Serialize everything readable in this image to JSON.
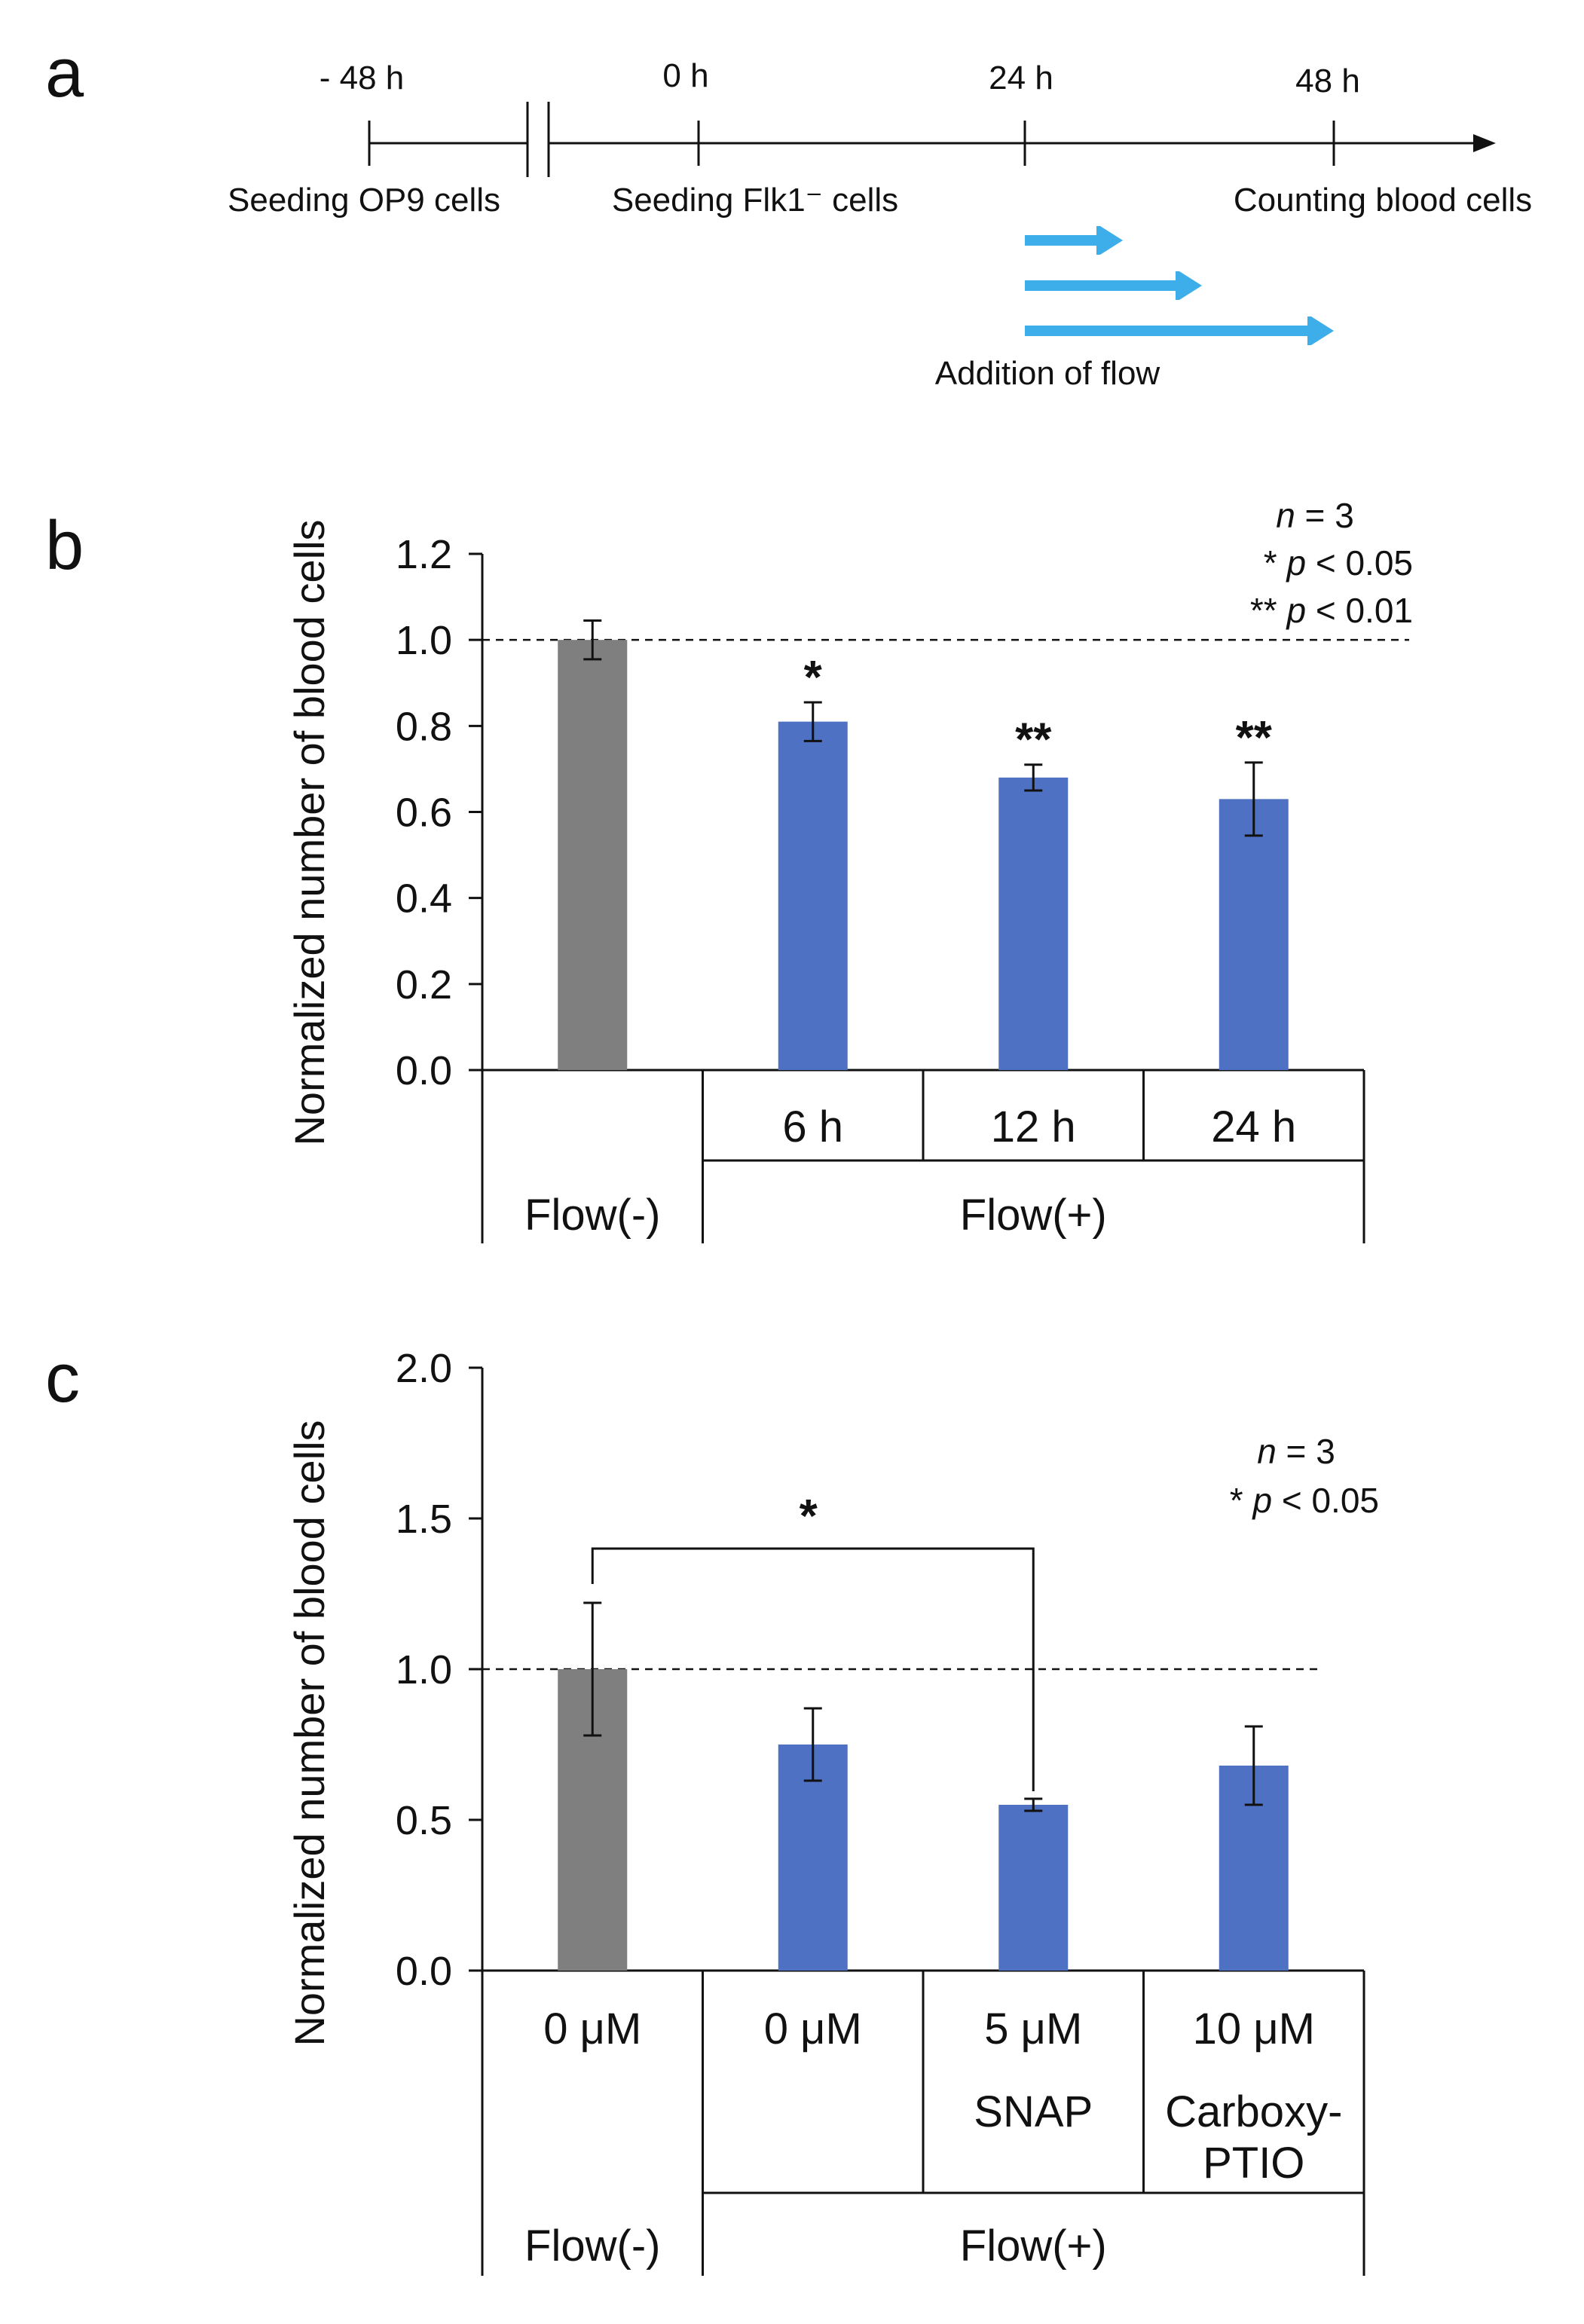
{
  "colors": {
    "control": "#7f7f7f",
    "flow": "#4f71c4",
    "arrow": "#3daee9",
    "ink": "#111111"
  },
  "panel_a": {
    "letter": "a",
    "timepoints": [
      "- 48 h",
      "0 h",
      "24 h",
      "48 h"
    ],
    "events": [
      "Seeding OP9 cells",
      "Seeding Flk1⁻ cells",
      "Counting blood cells"
    ],
    "flow_label": "Addition of flow"
  },
  "chart_data": [
    {
      "panel": "b",
      "type": "bar",
      "ylabel": "Normalized number of blood cells",
      "ylim": [
        0,
        1.2
      ],
      "yticks": [
        "0.0",
        "0.2",
        "0.4",
        "0.6",
        "0.8",
        "1.0",
        "1.2"
      ],
      "reference_line": 1.0,
      "categories": [
        "",
        "6 h",
        "12 h",
        "24 h"
      ],
      "groups": [
        {
          "label": "Flow(-)",
          "span": 1
        },
        {
          "label": "Flow(+)",
          "span": 3
        }
      ],
      "values": [
        1.0,
        0.81,
        0.68,
        0.63
      ],
      "errors": [
        0.045,
        0.045,
        0.03,
        0.085
      ],
      "significance": [
        "",
        "*",
        "**",
        "**"
      ],
      "bar_colors": [
        "control",
        "flow",
        "flow",
        "flow"
      ],
      "legend": {
        "n": "n",
        "n_rest": " = 3",
        "p": "p",
        "p1_mark": "*",
        "p1_rest": " < 0.05",
        "p2_mark": "**",
        "p2_rest": " < 0.01"
      }
    },
    {
      "panel": "c",
      "type": "bar",
      "ylabel": "Normalized number of blood cells",
      "ylim": [
        0,
        2.0
      ],
      "yticks": [
        "0.0",
        "0.5",
        "1.0",
        "1.5",
        "2.0"
      ],
      "reference_line": 1.0,
      "categories": [
        "0 μM",
        "0 μM",
        "5 μM",
        "10 μM"
      ],
      "treatments": [
        "",
        "",
        "SNAP",
        "Carboxy-\nPTIO"
      ],
      "groups": [
        {
          "label": "Flow(-)",
          "span": 1
        },
        {
          "label": "Flow(+)",
          "span": 3
        }
      ],
      "values": [
        1.0,
        0.75,
        0.55,
        0.68
      ],
      "errors": [
        0.22,
        0.12,
        0.02,
        0.13
      ],
      "bar_colors": [
        "control",
        "flow",
        "flow",
        "flow"
      ],
      "bracket": {
        "from": 0,
        "to": 2,
        "mark": "*"
      },
      "legend": {
        "n": "n",
        "n_rest": " = 3",
        "p": "p",
        "p1_mark": "*",
        "p1_rest": " < 0.05"
      }
    }
  ]
}
